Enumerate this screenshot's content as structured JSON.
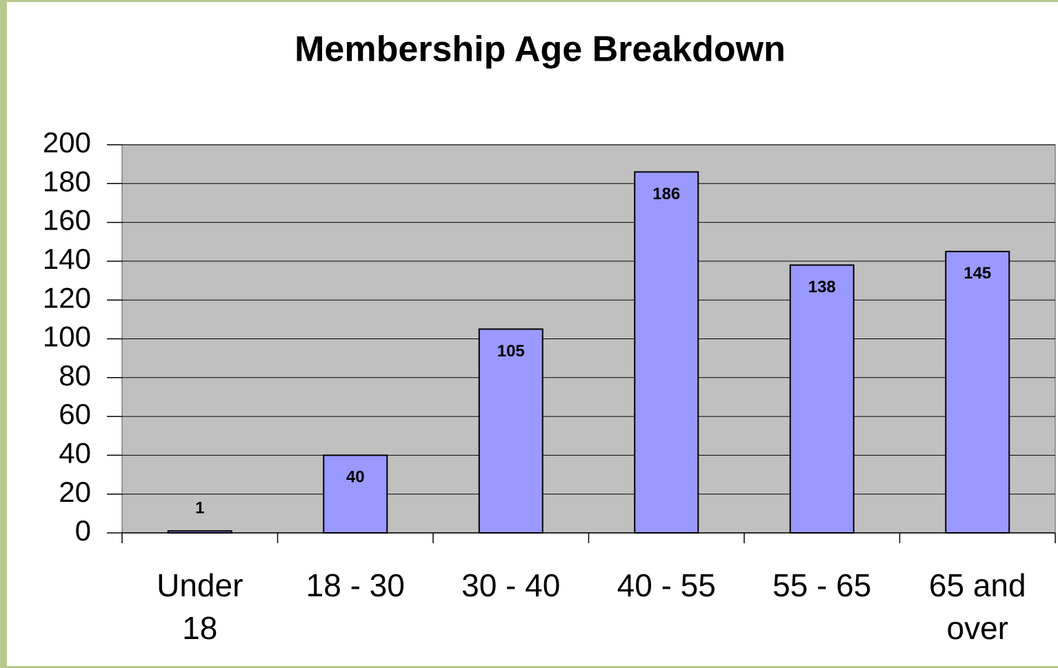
{
  "chart_data": {
    "type": "bar",
    "title": "Membership Age Breakdown",
    "categories": [
      "Under 18",
      "18 - 30",
      "30 - 40",
      "40 - 55",
      "55 - 65",
      "65 and over"
    ],
    "values": [
      1,
      40,
      105,
      186,
      138,
      145
    ],
    "color": "#9999ff",
    "ylim": [
      0,
      200
    ],
    "yticks": [
      0,
      20,
      40,
      60,
      80,
      100,
      120,
      140,
      160,
      180,
      200
    ],
    "grid": true
  }
}
